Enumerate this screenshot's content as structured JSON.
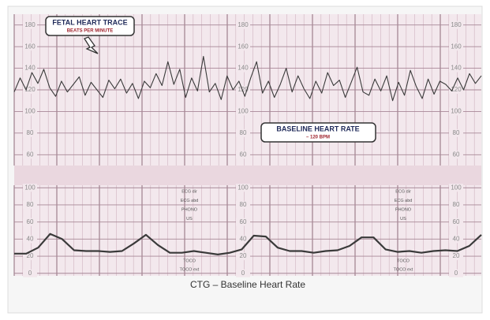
{
  "caption": "CTG – Baseline Heart Rate",
  "chart_data": [
    {
      "type": "line",
      "annotations": [
        "FETAL HEART TRACE",
        "BEATS PER MINUTE",
        "BASELINE HEART RATE",
        "– 120 BPM"
      ],
      "color": "#3a3a3a",
      "values": [
        118,
        131,
        120,
        136,
        126,
        139,
        122,
        114,
        128,
        118,
        125,
        132,
        115,
        127,
        120,
        113,
        129,
        121,
        130,
        117,
        126,
        112,
        128,
        122,
        135,
        124,
        146,
        125,
        139,
        113,
        131,
        119,
        151,
        118,
        126,
        111,
        133,
        120,
        128,
        114,
        131,
        146,
        117,
        128,
        113,
        125,
        140,
        118,
        133,
        121,
        112,
        128,
        117,
        136,
        124,
        129,
        113,
        127,
        141,
        118,
        115,
        130,
        119,
        133,
        110,
        127,
        115,
        138,
        123,
        112,
        130,
        116,
        128,
        125,
        119,
        131,
        120,
        135,
        126,
        133
      ],
      "ylim": [
        50,
        190
      ],
      "yticks": [
        60,
        80,
        100,
        120,
        140,
        160,
        180
      ],
      "grid": true
    },
    {
      "type": "line",
      "channel_labels": [
        "ECG dir",
        "ECG abd",
        "PHONO",
        "US"
      ],
      "toco_labels": [
        "TOCO",
        "TOCO ext"
      ],
      "color": "#3a3a3a",
      "values": [
        23,
        23,
        30,
        46,
        40,
        27,
        26,
        26,
        25,
        26,
        35,
        45,
        33,
        24,
        24,
        26,
        24,
        22,
        24,
        28,
        44,
        43,
        30,
        26,
        26,
        24,
        26,
        27,
        32,
        42,
        42,
        28,
        25,
        26,
        24,
        26,
        27,
        26,
        32,
        45
      ],
      "ylim": [
        -3,
        103
      ],
      "yticks": [
        0,
        20,
        40,
        60,
        80,
        100
      ],
      "grid": true
    }
  ]
}
